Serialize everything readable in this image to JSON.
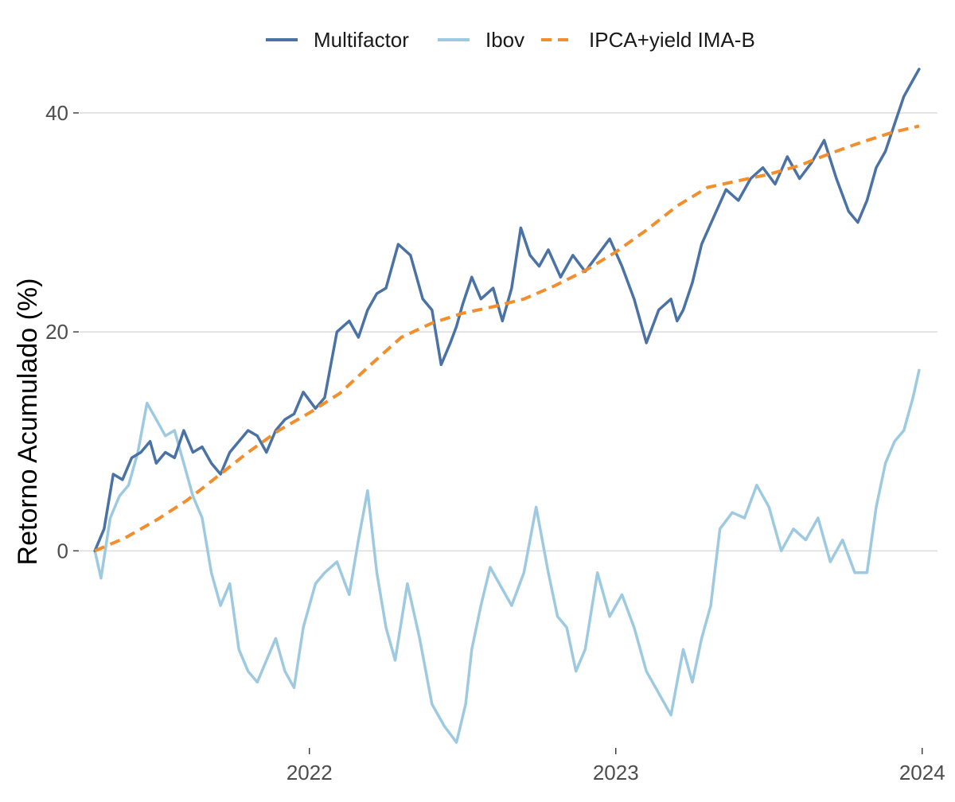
{
  "chart_data": {
    "type": "line",
    "title": "",
    "xlabel": "",
    "ylabel": "Retorno Acumulado (%)",
    "ylim": [
      -18,
      44.5
    ],
    "y_ticks": [
      0,
      20,
      40
    ],
    "y_tick_labels": [
      "0",
      "20",
      "40"
    ],
    "x_range": [
      2021.25,
      2024.05
    ],
    "x_ticks": [
      2022,
      2023,
      2024
    ],
    "x_tick_labels": [
      "2022",
      "2023",
      "2024"
    ],
    "grid": "horizontal",
    "legend_position": "top",
    "series": [
      {
        "name": "Multifactor",
        "color": "#4a72a5",
        "style": "solid",
        "x": [
          2021.3,
          2021.33,
          2021.36,
          2021.39,
          2021.42,
          2021.45,
          2021.48,
          2021.5,
          2021.53,
          2021.56,
          2021.59,
          2021.62,
          2021.65,
          2021.68,
          2021.71,
          2021.74,
          2021.77,
          2021.8,
          2021.83,
          2021.86,
          2021.89,
          2021.92,
          2021.95,
          2021.98,
          2022.02,
          2022.05,
          2022.09,
          2022.13,
          2022.16,
          2022.19,
          2022.22,
          2022.25,
          2022.29,
          2022.33,
          2022.37,
          2022.4,
          2022.43,
          2022.46,
          2022.48,
          2022.5,
          2022.53,
          2022.56,
          2022.6,
          2022.63,
          2022.66,
          2022.69,
          2022.72,
          2022.75,
          2022.78,
          2022.82,
          2022.86,
          2022.9,
          2022.94,
          2022.98,
          2023.02,
          2023.06,
          2023.1,
          2023.14,
          2023.18,
          2023.2,
          2023.22,
          2023.25,
          2023.28,
          2023.32,
          2023.36,
          2023.4,
          2023.44,
          2023.48,
          2023.52,
          2023.56,
          2023.6,
          2023.64,
          2023.68,
          2023.72,
          2023.76,
          2023.79,
          2023.82,
          2023.85,
          2023.88,
          2023.91,
          2023.94,
          2023.97,
          2023.99
        ],
        "values": [
          0.0,
          2.0,
          7.0,
          6.5,
          8.5,
          9.0,
          10.0,
          8.0,
          9.0,
          8.5,
          11.0,
          9.0,
          9.5,
          8.0,
          7.0,
          9.0,
          10.0,
          11.0,
          10.5,
          9.0,
          11.0,
          12.0,
          12.5,
          14.5,
          13.0,
          14.0,
          20.0,
          21.0,
          19.5,
          22.0,
          23.5,
          24.0,
          28.0,
          27.0,
          23.0,
          22.0,
          17.0,
          19.0,
          20.5,
          22.5,
          25.0,
          23.0,
          24.0,
          21.0,
          24.0,
          29.5,
          27.0,
          26.0,
          27.5,
          25.0,
          27.0,
          25.5,
          27.0,
          28.5,
          26.0,
          23.0,
          19.0,
          22.0,
          23.0,
          21.0,
          22.0,
          24.5,
          28.0,
          30.5,
          33.0,
          32.0,
          34.0,
          35.0,
          33.5,
          36.0,
          34.0,
          35.5,
          37.5,
          34.0,
          31.0,
          30.0,
          32.0,
          35.0,
          36.5,
          39.0,
          41.5,
          43.0,
          44.0
        ]
      },
      {
        "name": "Ibov",
        "color": "#9ecae1",
        "style": "solid",
        "x": [
          2021.3,
          2021.32,
          2021.35,
          2021.38,
          2021.41,
          2021.44,
          2021.47,
          2021.5,
          2021.53,
          2021.56,
          2021.59,
          2021.62,
          2021.65,
          2021.68,
          2021.71,
          2021.74,
          2021.77,
          2021.8,
          2021.83,
          2021.86,
          2021.89,
          2021.92,
          2021.95,
          2021.98,
          2022.02,
          2022.05,
          2022.09,
          2022.13,
          2022.16,
          2022.19,
          2022.22,
          2022.25,
          2022.28,
          2022.32,
          2022.36,
          2022.4,
          2022.44,
          2022.48,
          2022.51,
          2022.53,
          2022.56,
          2022.59,
          2022.62,
          2022.66,
          2022.7,
          2022.74,
          2022.78,
          2022.81,
          2022.84,
          2022.87,
          2022.9,
          2022.94,
          2022.98,
          2023.02,
          2023.06,
          2023.1,
          2023.14,
          2023.18,
          2023.2,
          2023.22,
          2023.25,
          2023.28,
          2023.31,
          2023.34,
          2023.38,
          2023.42,
          2023.46,
          2023.5,
          2023.54,
          2023.58,
          2023.62,
          2023.66,
          2023.7,
          2023.74,
          2023.78,
          2023.82,
          2023.85,
          2023.88,
          2023.91,
          2023.94,
          2023.97,
          2023.99
        ],
        "values": [
          0.0,
          -2.5,
          3.0,
          5.0,
          6.0,
          9.0,
          13.5,
          12.0,
          10.5,
          11.0,
          8.0,
          5.0,
          3.0,
          -2.0,
          -5.0,
          -3.0,
          -9.0,
          -11.0,
          -12.0,
          -10.0,
          -8.0,
          -11.0,
          -12.5,
          -7.0,
          -3.0,
          -2.0,
          -1.0,
          -4.0,
          1.0,
          5.5,
          -2.0,
          -7.0,
          -10.0,
          -3.0,
          -8.0,
          -14.0,
          -16.0,
          -17.5,
          -14.0,
          -9.0,
          -5.0,
          -1.5,
          -3.0,
          -5.0,
          -2.0,
          4.0,
          -2.0,
          -6.0,
          -7.0,
          -11.0,
          -9.0,
          -2.0,
          -6.0,
          -4.0,
          -7.0,
          -11.0,
          -13.0,
          -15.0,
          -12.0,
          -9.0,
          -12.0,
          -8.0,
          -5.0,
          2.0,
          3.5,
          3.0,
          6.0,
          4.0,
          0.0,
          2.0,
          1.0,
          3.0,
          -1.0,
          1.0,
          -2.0,
          -2.0,
          4.0,
          8.0,
          10.0,
          11.0,
          14.0,
          16.5
        ]
      },
      {
        "name": "IPCA+yield IMA-B",
        "color": "#f28e2b",
        "style": "dashed",
        "x": [
          2021.3,
          2021.4,
          2021.5,
          2021.6,
          2021.7,
          2021.8,
          2021.9,
          2022.0,
          2022.1,
          2022.2,
          2022.3,
          2022.4,
          2022.5,
          2022.6,
          2022.7,
          2022.8,
          2022.9,
          2023.0,
          2023.1,
          2023.2,
          2023.3,
          2023.4,
          2023.5,
          2023.6,
          2023.7,
          2023.8,
          2023.9,
          2023.99
        ],
        "values": [
          0.0,
          1.2,
          2.8,
          4.6,
          6.8,
          9.0,
          11.0,
          12.6,
          14.4,
          17.0,
          19.5,
          20.8,
          21.7,
          22.3,
          23.0,
          24.2,
          25.6,
          27.3,
          29.3,
          31.5,
          33.2,
          33.8,
          34.4,
          35.2,
          36.3,
          37.3,
          38.2,
          38.8
        ]
      }
    ]
  }
}
